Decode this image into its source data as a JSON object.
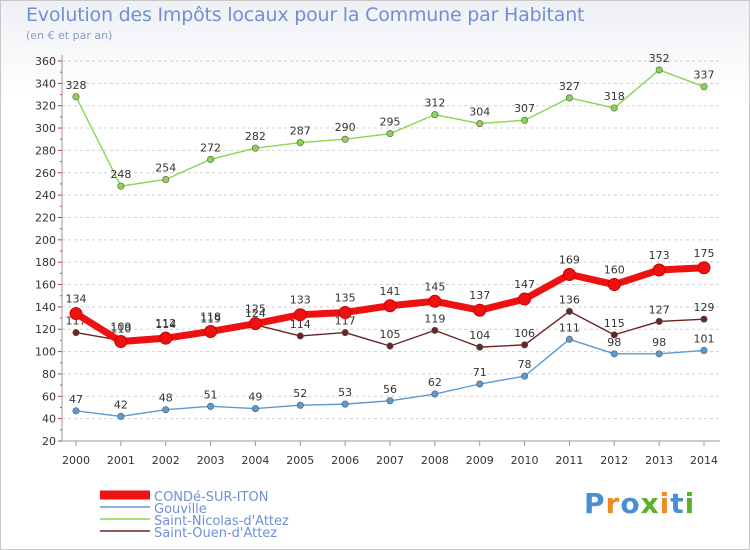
{
  "header": {
    "title": "Evolution des Impôts locaux pour la Commune par Habitant",
    "subtitle": "(en € et par an)"
  },
  "logo": {
    "text": "Proxiti",
    "letter_colors": [
      "#4a8fd4",
      "#f08a24",
      "#4a8fd4",
      "#5cb030",
      "#f08a24",
      "#4a8fd4",
      "#5cb030"
    ]
  },
  "chart_data": {
    "type": "line",
    "x": [
      2000,
      2001,
      2002,
      2003,
      2004,
      2005,
      2006,
      2007,
      2008,
      2009,
      2010,
      2011,
      2012,
      2013,
      2014
    ],
    "ylim": [
      20,
      360
    ],
    "yticks": [
      20,
      40,
      60,
      80,
      100,
      120,
      140,
      160,
      180,
      200,
      220,
      240,
      260,
      280,
      300,
      320,
      340,
      360
    ],
    "grid": "horizontal-dashed",
    "legend_position": "bottom-left",
    "series": [
      {
        "name": "CONDé-SUR-ITON",
        "color": "#ee1111",
        "values": [
          134,
          109,
          112,
          118,
          125,
          133,
          135,
          141,
          145,
          137,
          147,
          169,
          160,
          173,
          175
        ]
      },
      {
        "name": "Gouville",
        "color": "#5b9bd5",
        "values": [
          47,
          42,
          48,
          51,
          49,
          52,
          53,
          56,
          62,
          71,
          78,
          111,
          98,
          98,
          101
        ]
      },
      {
        "name": "Saint-Nicolas-d'Attez",
        "color": "#88d64f",
        "values": [
          328,
          248,
          254,
          272,
          282,
          287,
          290,
          295,
          312,
          304,
          307,
          327,
          318,
          352,
          337
        ]
      },
      {
        "name": "Saint-Ouen-d'Attez",
        "color": "#6b2424",
        "values": [
          117,
          110,
          114,
          119,
          124,
          114,
          117,
          105,
          119,
          104,
          106,
          136,
          115,
          127,
          129
        ]
      }
    ]
  }
}
